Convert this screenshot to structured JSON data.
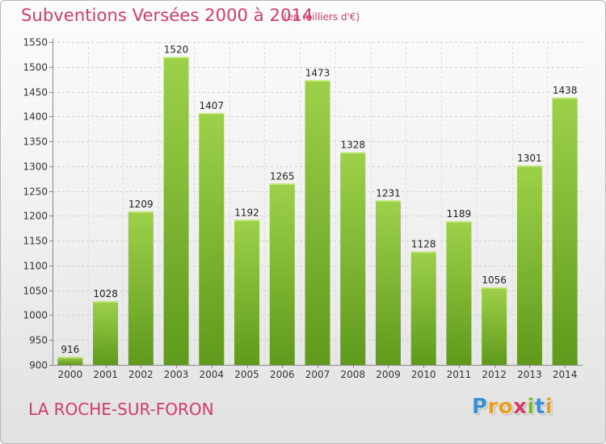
{
  "header": {
    "title": "Subventions Versées 2000 à 2014",
    "unit_note": "(en milliers d'€)"
  },
  "footer": {
    "place": "LA ROCHE-SUR-FORON",
    "logo_letters": [
      {
        "ch": "P",
        "color": "#3a8fd0"
      },
      {
        "ch": "r",
        "color": "#e8a020"
      },
      {
        "ch": "o",
        "color": "#e8a020"
      },
      {
        "ch": "x",
        "color": "#d63a6a"
      },
      {
        "ch": "i",
        "color": "#7ab830"
      },
      {
        "ch": "t",
        "color": "#3a8fd0"
      },
      {
        "ch": "i",
        "color": "#e8a020"
      }
    ]
  },
  "chart_data": {
    "type": "bar",
    "categories": [
      "2000",
      "2001",
      "2002",
      "2003",
      "2004",
      "2005",
      "2006",
      "2007",
      "2008",
      "2009",
      "2010",
      "2011",
      "2012",
      "2013",
      "2014"
    ],
    "values": [
      916,
      1028,
      1209,
      1520,
      1407,
      1192,
      1265,
      1473,
      1328,
      1231,
      1128,
      1189,
      1056,
      1301,
      1438
    ],
    "ylim": [
      900,
      1550
    ],
    "yticks": [
      900,
      950,
      1000,
      1050,
      1100,
      1150,
      1200,
      1250,
      1300,
      1350,
      1400,
      1450,
      1500,
      1550
    ],
    "grid": true,
    "bar_color_top": "#9ed14a",
    "bar_color_bottom": "#5f9a1c",
    "title_color": "#d63a6a"
  }
}
